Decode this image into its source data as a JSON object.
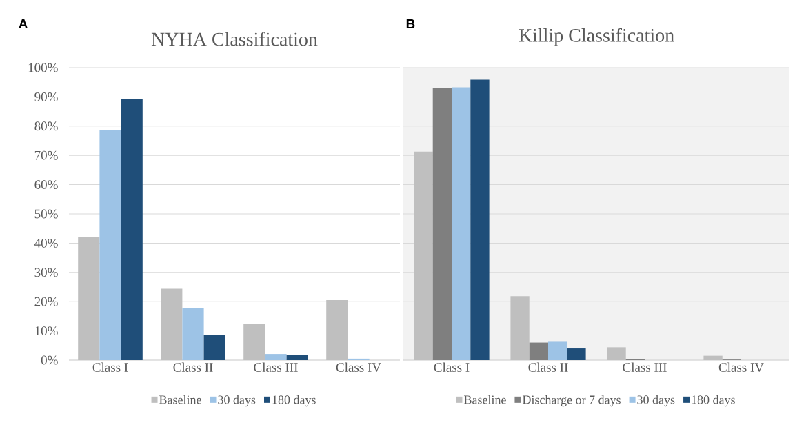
{
  "chart_data": [
    {
      "type": "bar",
      "title": "NYHA Classification",
      "annotations": [
        "A"
      ],
      "categories": [
        "Class I",
        "Class II",
        "Class III",
        "Class IV"
      ],
      "series": [
        {
          "name": "Baseline",
          "color": "#bfbfbf",
          "values": [
            42,
            24.4,
            12.3,
            20.5
          ]
        },
        {
          "name": "30 days",
          "color": "#9dc3e6",
          "values": [
            78.8,
            17.8,
            2.1,
            0.5
          ]
        },
        {
          "name": "180 days",
          "color": "#1f4e79",
          "values": [
            89.2,
            8.7,
            1.8,
            0
          ]
        }
      ],
      "ylim": [
        0,
        100
      ],
      "yticks": [
        {
          "value": 0,
          "label": "0%"
        },
        {
          "value": 10,
          "label": "10%"
        },
        {
          "value": 20,
          "label": "20%"
        },
        {
          "value": 30,
          "label": "30%"
        },
        {
          "value": 40,
          "label": "40%"
        },
        {
          "value": 50,
          "label": "50%"
        },
        {
          "value": 60,
          "label": "60%"
        },
        {
          "value": 70,
          "label": "70%"
        },
        {
          "value": 80,
          "label": "80%"
        },
        {
          "value": 90,
          "label": "90%"
        },
        {
          "value": 100,
          "label": "100%"
        }
      ],
      "grid": "y",
      "legend": "bottom"
    },
    {
      "type": "bar",
      "title": "Killip Classification",
      "annotations": [
        "B"
      ],
      "categories": [
        "Class I",
        "Class II",
        "Class III",
        "Class IV"
      ],
      "series": [
        {
          "name": "Baseline",
          "color": "#bfbfbf",
          "values": [
            71.3,
            21.9,
            4.4,
            1.5
          ]
        },
        {
          "name": "Discharge or 7 days",
          "color": "#7f7f7f",
          "values": [
            93,
            6,
            0.3,
            0.2
          ]
        },
        {
          "name": "30 days",
          "color": "#9dc3e6",
          "values": [
            93.3,
            6.5,
            0,
            0
          ]
        },
        {
          "name": "180 days",
          "color": "#1f4e79",
          "values": [
            95.9,
            4,
            0,
            0
          ]
        }
      ],
      "ylim": [
        0,
        100
      ],
      "yticks": [
        {
          "value": 0,
          "label": null
        },
        {
          "value": 10,
          "label": null
        },
        {
          "value": 20,
          "label": null
        },
        {
          "value": 30,
          "label": null
        },
        {
          "value": 40,
          "label": null
        },
        {
          "value": 50,
          "label": null
        },
        {
          "value": 60,
          "label": null
        },
        {
          "value": 70,
          "label": null
        },
        {
          "value": 80,
          "label": null
        },
        {
          "value": 90,
          "label": null
        },
        {
          "value": 100,
          "label": null
        }
      ],
      "grid": "y",
      "legend": "bottom",
      "tick_labels": "x"
    }
  ]
}
